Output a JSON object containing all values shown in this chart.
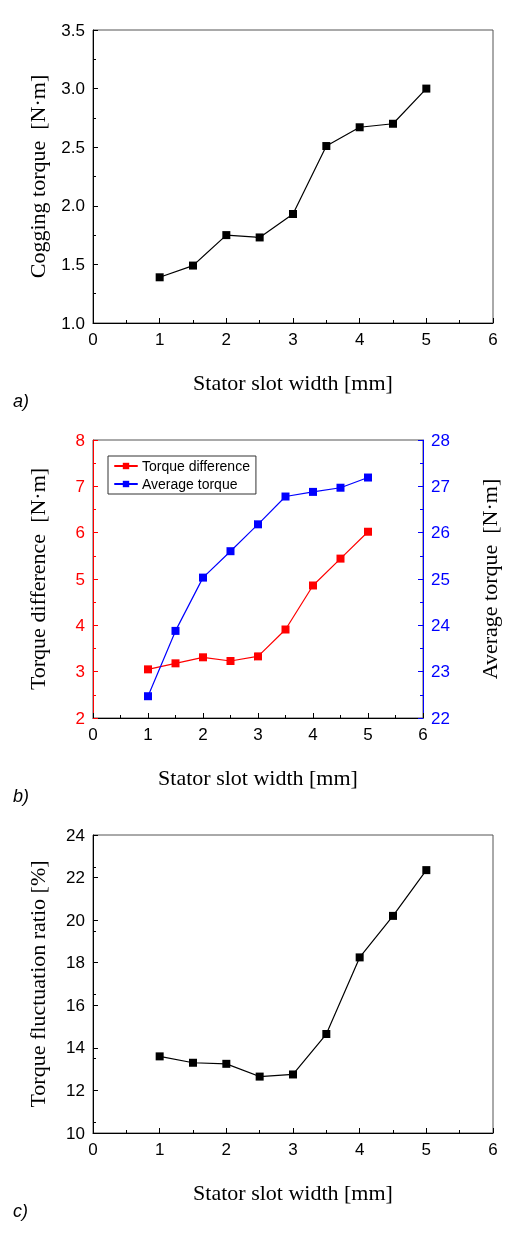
{
  "chart_data": [
    {
      "type": "line",
      "xlabel": "Stator slot width [mm]",
      "ylabel": "Cogging torque  [N·m]",
      "annotations": [
        "a)"
      ],
      "marker": "square",
      "line_style": "solid",
      "grid": false,
      "legend": false,
      "x": [
        1,
        1.5,
        2,
        2.5,
        3,
        3.5,
        4,
        4.5,
        5
      ],
      "series": [
        {
          "color": "#000000",
          "values": [
            1.39,
            1.49,
            1.75,
            1.73,
            1.93,
            2.51,
            2.67,
            2.7,
            3.0
          ]
        }
      ],
      "xlim": [
        0,
        6
      ],
      "xticks": [
        0,
        1,
        2,
        3,
        4,
        5,
        6
      ],
      "ylim": [
        1,
        3.5
      ],
      "yticks": [
        {
          "value": 1,
          "label": "1.0"
        },
        {
          "value": 1.5,
          "label": "1.5"
        },
        {
          "value": 2,
          "label": "2.0"
        },
        {
          "value": 2.5,
          "label": "2.5"
        },
        {
          "value": 3,
          "label": "3.0"
        },
        {
          "value": 3.5,
          "label": "3.5"
        }
      ]
    },
    {
      "type": "line",
      "xlabel": "Stator slot width [mm]",
      "ylabel": "Torque difference  [N·m]",
      "y2label": "Average torque  [N·m]",
      "annotations": [
        "b)"
      ],
      "marker": "square",
      "line_style": "solid",
      "grid": false,
      "legend": "top left",
      "x": [
        1,
        1.5,
        2,
        2.5,
        3,
        3.5,
        4,
        4.5,
        5
      ],
      "series": [
        {
          "name": "Torque difference",
          "color": "#ff0000",
          "values": [
            3.05,
            3.18,
            3.31,
            3.23,
            3.33,
            3.91,
            4.86,
            5.44,
            6.02
          ]
        },
        {
          "name": "Average torque",
          "color": "#0000ff",
          "axis": "y2",
          "values": [
            22.47,
            23.88,
            25.03,
            25.6,
            26.18,
            26.78,
            26.88,
            26.97,
            27.19
          ]
        }
      ],
      "xlim": [
        0,
        6
      ],
      "xticks": [
        0,
        1,
        2,
        3,
        4,
        5,
        6
      ],
      "ylim": [
        2,
        8
      ],
      "yticks": [
        2,
        3,
        4,
        5,
        6,
        7,
        8
      ],
      "y2lim": [
        22,
        28
      ],
      "y2ticks": [
        22,
        23,
        24,
        25,
        26,
        27,
        28
      ]
    },
    {
      "type": "line",
      "xlabel": "Stator slot width [mm]",
      "ylabel": "Torque fluctuation ratio [%]",
      "annotations": [
        "c)"
      ],
      "marker": "square",
      "line_style": "solid",
      "grid": false,
      "legend": false,
      "x": [
        1,
        1.5,
        2,
        2.5,
        3,
        3.5,
        4,
        4.5,
        5
      ],
      "series": [
        {
          "color": "#000000",
          "values": [
            13.6,
            13.3,
            13.25,
            12.65,
            12.75,
            14.65,
            18.25,
            20.2,
            22.35
          ]
        }
      ],
      "xlim": [
        0,
        6
      ],
      "xticks": [
        0,
        1,
        2,
        3,
        4,
        5,
        6
      ],
      "ylim": [
        10,
        24
      ],
      "yticks": [
        10,
        12,
        14,
        16,
        18,
        20,
        22,
        24
      ]
    }
  ]
}
